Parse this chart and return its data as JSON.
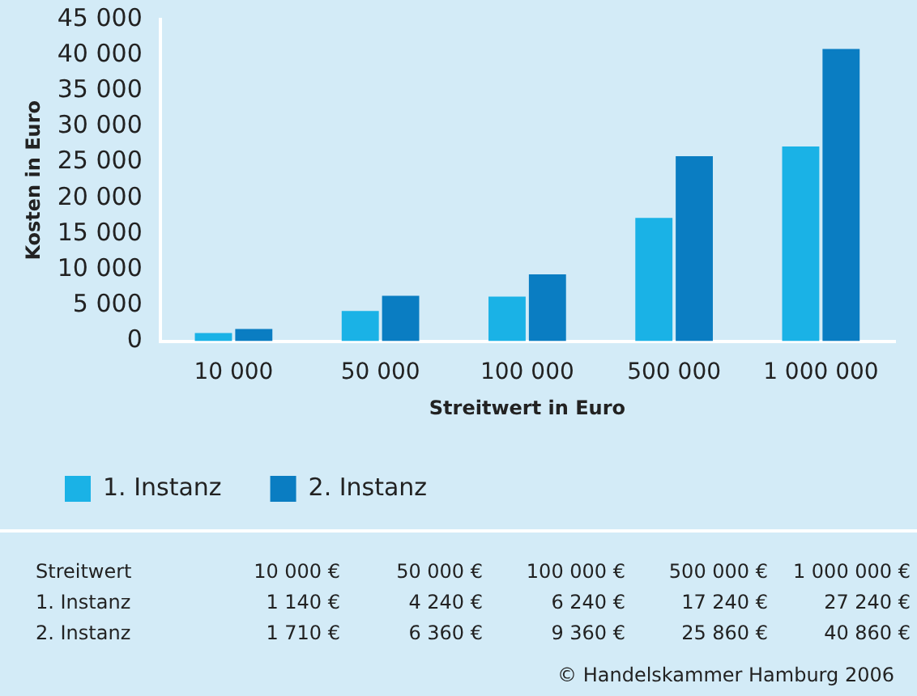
{
  "chart_data": {
    "type": "bar",
    "xlabel": "Streitwert in Euro",
    "ylabel": "Kosten in Euro",
    "categories": [
      "10 000",
      "50 000",
      "100 000",
      "500 000",
      "1 000 000"
    ],
    "series": [
      {
        "name": "1. Instanz",
        "color": "#1ab2e6",
        "values": [
          1140,
          4240,
          6240,
          17240,
          27240
        ],
        "value_labels": [
          "1 140 €",
          "4 240 €",
          "6 240 €",
          "17 240 €",
          "27 240 €"
        ]
      },
      {
        "name": "2. Instanz",
        "color": "#0a7dc2",
        "values": [
          1710,
          6360,
          9360,
          25860,
          40860
        ],
        "value_labels": [
          "1 710 €",
          "6 360 €",
          "9 360 €",
          "25 860 €",
          "40 860 €"
        ]
      }
    ],
    "ylim": [
      0,
      45000
    ],
    "yticks": [
      {
        "value": 0,
        "label": "0"
      },
      {
        "value": 5000,
        "label": "5 000"
      },
      {
        "value": 10000,
        "label": "10 000"
      },
      {
        "value": 15000,
        "label": "15 000"
      },
      {
        "value": 20000,
        "label": "20 000"
      },
      {
        "value": 25000,
        "label": "25 000"
      },
      {
        "value": 30000,
        "label": "30 000"
      },
      {
        "value": 35000,
        "label": "35 000"
      },
      {
        "value": 40000,
        "label": "40 000"
      },
      {
        "value": 45000,
        "label": "45 000"
      }
    ],
    "grid": false,
    "legend": "bottom",
    "data_labels": true,
    "annotations": [
      "Streitwert",
      "10 000 €",
      "50 000 €",
      "100 000 €",
      "500 000 €",
      "1 000 000 €",
      "© Handelskammer Hamburg 2006"
    ]
  }
}
